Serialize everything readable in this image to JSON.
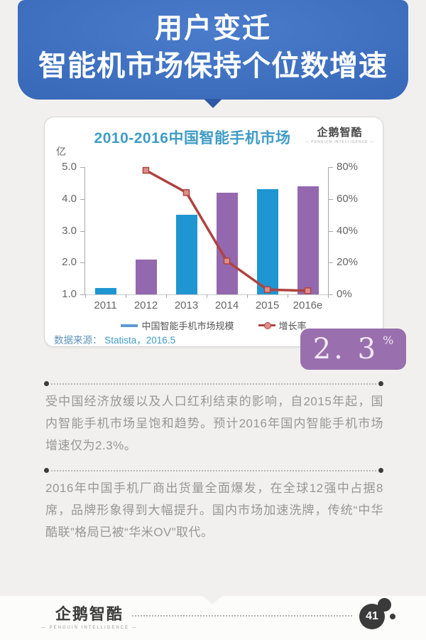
{
  "header": {
    "line1": "用户变迁",
    "line2": "智能机市场保持个位数增速"
  },
  "chart": {
    "title": "2010-2016中国智能手机市场",
    "logo_text": "企鹅智酷",
    "logo_subtext": "— PENGUIN INTELLIGENCE —",
    "source_prefix": "数据来源：",
    "source_value": "Statista，2016.5",
    "legend": [
      {
        "label": "中国智能手机市场规模",
        "color": "#5b9bd5"
      },
      {
        "label": "增长率",
        "color": "#b0423e",
        "marker_fill": "#dd8f8c"
      }
    ]
  },
  "chart_data": {
    "type": "bar+line combo",
    "title": "2010-2016中国智能手机市场",
    "categories": [
      "2011",
      "2012",
      "2013",
      "2014",
      "2015",
      "2016e"
    ],
    "series": [
      {
        "name": "中国智能手机市场规模",
        "type": "bar",
        "axis": "left",
        "values": [
          1.2,
          2.1,
          3.5,
          4.2,
          4.3,
          4.4
        ],
        "bar_colors": [
          "#1f96d2",
          "#9468ae",
          "#1f96d2",
          "#9468ae",
          "#1f96d2",
          "#9468ae"
        ]
      },
      {
        "name": "增长率",
        "type": "line",
        "axis": "right",
        "values": [
          null,
          78,
          64,
          21,
          3,
          2.3
        ],
        "color": "#b0423e",
        "marker": "square",
        "marker_fill": "#dd8f8c"
      }
    ],
    "left_axis": {
      "label": "亿",
      "min": 1.0,
      "max": 5.0,
      "tick_labels": [
        "5.0",
        "4.0",
        "3.0",
        "2.0",
        "1.0"
      ]
    },
    "right_axis": {
      "min": 0,
      "max": 80,
      "tick_labels": [
        "80%",
        "60%",
        "40%",
        "20%",
        "0%"
      ]
    },
    "grid": false,
    "legend_position": "bottom"
  },
  "badge": {
    "value": "2. 3",
    "percent": "%"
  },
  "paragraphs": [
    "受中国经济放缓以及人口红利结束的影响，自2015年起，国内智能手机市场呈饱和趋势。预计2016年国内智能手机市场增速仅为2.3%。",
    "2016年中国手机厂商出货量全面爆发，在全球12强中占据8席，品牌形象得到大幅提升。国内市场加速洗牌，传统“中华酷联”格局已被“华米OV”取代。"
  ],
  "footer": {
    "logo_text": "企鹅智酷",
    "logo_subtext": "— PENGUIN INTELLIGENCE —",
    "page_number": "41"
  },
  "colors": {
    "banner_blue": "#3b6cbc",
    "bar_blue": "#1f96d2",
    "bar_purple": "#9468ae",
    "line_red": "#b0423e",
    "badge_purple": "#9a6fae",
    "title_blue": "#3e9cc6"
  }
}
